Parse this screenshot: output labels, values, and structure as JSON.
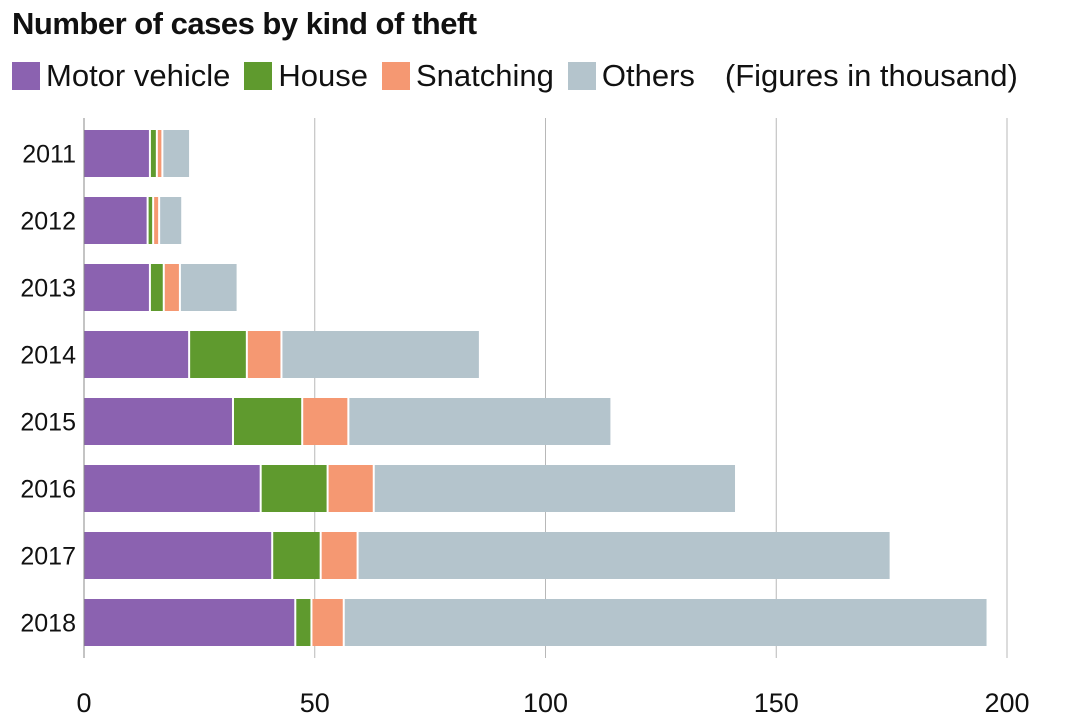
{
  "chart_data": {
    "type": "bar",
    "orientation": "horizontal",
    "stacked": true,
    "title": "Number of cases by kind of theft",
    "note": "(Figures in thousand)",
    "categories": [
      "2011",
      "2012",
      "2013",
      "2014",
      "2015",
      "2016",
      "2017",
      "2018"
    ],
    "series": [
      {
        "name": "Motor vehicle",
        "color": "#8b62b0",
        "values": [
          14.5,
          14,
          14.5,
          23,
          32.5,
          38.5,
          41,
          46
        ]
      },
      {
        "name": "House",
        "color": "#5f9a2e",
        "values": [
          1.5,
          1.2,
          3,
          12.5,
          15,
          14.5,
          10.5,
          3.5
        ]
      },
      {
        "name": "Snatching",
        "color": "#f59872",
        "values": [
          1.2,
          1.3,
          3.5,
          7.5,
          10,
          10,
          8,
          7
        ]
      },
      {
        "name": "Others",
        "color": "#b4c4cc",
        "values": [
          6,
          5,
          12.5,
          43,
          57,
          78.5,
          115.5,
          139.5
        ]
      }
    ],
    "xlim": [
      0,
      200
    ],
    "xticks": [
      0,
      50,
      100,
      150,
      200
    ],
    "grid": "vertical",
    "legend": "top-left"
  }
}
